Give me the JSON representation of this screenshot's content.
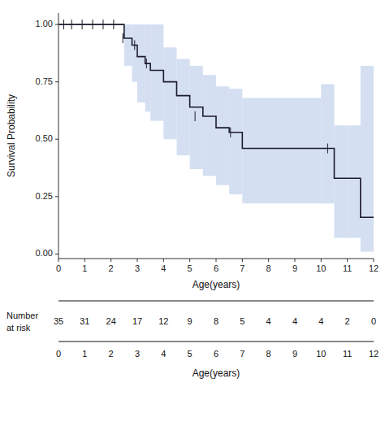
{
  "chart_data": {
    "type": "kaplan-meier",
    "xlabel": "Age(years)",
    "ylabel": "Survival Probability",
    "xlim": [
      0,
      12
    ],
    "ylim": [
      -0.02,
      1.05
    ],
    "xticks": [
      0,
      1,
      2,
      3,
      4,
      5,
      6,
      7,
      8,
      9,
      10,
      11,
      12
    ],
    "yticks": [
      {
        "value": 0.0,
        "label": "0.00"
      },
      {
        "value": 0.25,
        "label": "0.25"
      },
      {
        "value": 0.5,
        "label": "0.50"
      },
      {
        "value": 0.75,
        "label": "0.75"
      },
      {
        "value": 1.0,
        "label": "1.00"
      }
    ],
    "grid": false,
    "x": [
      0,
      2.0,
      2.5,
      2.8,
      3.0,
      3.3,
      3.5,
      4.0,
      4.5,
      5.0,
      5.5,
      6.0,
      6.5,
      7.0,
      10.0,
      10.5,
      11.0,
      11.5,
      12.0
    ],
    "series": [
      {
        "type": "band",
        "color": "#c5d4ee",
        "lower": [
          1.0,
          1.0,
          0.82,
          0.75,
          0.66,
          0.62,
          0.58,
          0.5,
          0.43,
          0.37,
          0.34,
          0.3,
          0.26,
          0.22,
          0.22,
          0.07,
          0.07,
          0.01,
          0.01
        ],
        "upper": [
          1.0,
          1.0,
          1.0,
          1.0,
          1.0,
          1.0,
          1.0,
          0.9,
          0.85,
          0.82,
          0.78,
          0.73,
          0.72,
          0.68,
          0.74,
          0.56,
          0.56,
          0.82,
          0.82
        ]
      },
      {
        "type": "step",
        "color": "#1c1c2e",
        "values": [
          1.0,
          1.0,
          0.94,
          0.91,
          0.86,
          0.83,
          0.8,
          0.75,
          0.69,
          0.64,
          0.6,
          0.55,
          0.53,
          0.46,
          0.46,
          0.33,
          0.33,
          0.16,
          0.16
        ]
      },
      {
        "type": "scatter",
        "marker": "tick",
        "color": "#1c1c2e",
        "x": [
          0.2,
          0.5,
          0.9,
          1.3,
          1.7,
          2.1,
          2.45,
          2.9,
          3.35,
          5.2,
          6.55,
          10.25
        ],
        "values": [
          1.0,
          1.0,
          1.0,
          1.0,
          1.0,
          1.0,
          0.94,
          0.91,
          0.83,
          0.6,
          0.53,
          0.46
        ]
      }
    ],
    "risk_label": [
      "Number",
      "at risk"
    ],
    "risk_times": [
      0,
      1,
      2,
      3,
      4,
      5,
      6,
      7,
      8,
      9,
      10,
      11,
      12
    ],
    "number_at_risk": [
      35,
      31,
      24,
      17,
      12,
      9,
      8,
      5,
      4,
      4,
      4,
      2,
      0
    ]
  }
}
